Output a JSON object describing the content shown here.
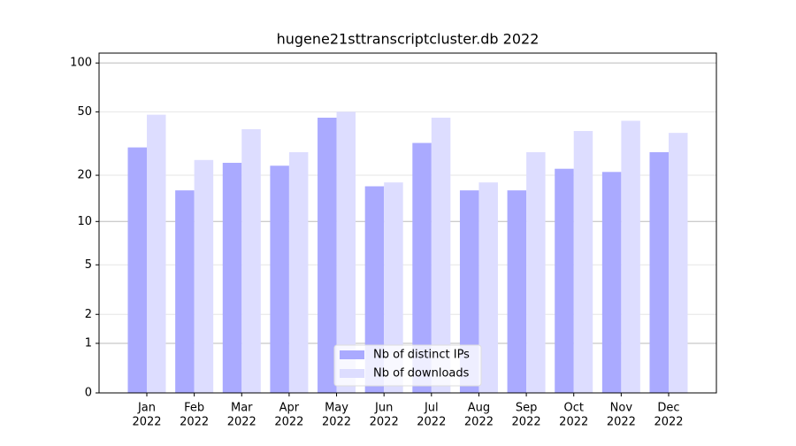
{
  "chart_data": {
    "type": "bar",
    "title": "hugene21sttranscriptcluster.db 2022",
    "categories": [
      [
        "Jan",
        "2022"
      ],
      [
        "Feb",
        "2022"
      ],
      [
        "Mar",
        "2022"
      ],
      [
        "Apr",
        "2022"
      ],
      [
        "May",
        "2022"
      ],
      [
        "Jun",
        "2022"
      ],
      [
        "Jul",
        "2022"
      ],
      [
        "Aug",
        "2022"
      ],
      [
        "Sep",
        "2022"
      ],
      [
        "Oct",
        "2022"
      ],
      [
        "Nov",
        "2022"
      ],
      [
        "Dec",
        "2022"
      ]
    ],
    "series": [
      {
        "name": "Nb of distinct IPs",
        "color": "#aaaaff",
        "values": [
          30,
          16,
          24,
          23,
          46,
          17,
          32,
          16,
          16,
          22,
          21,
          28
        ]
      },
      {
        "name": "Nb of downloads",
        "color": "#ddddff",
        "values": [
          48,
          25,
          39,
          28,
          50,
          18,
          46,
          18,
          28,
          38,
          44,
          37
        ]
      }
    ],
    "yscale": "log1p",
    "ylim": [
      0,
      115
    ],
    "yticks": [
      0,
      1,
      2,
      5,
      10,
      20,
      50,
      100
    ],
    "grid": true,
    "legend": "lower center"
  }
}
